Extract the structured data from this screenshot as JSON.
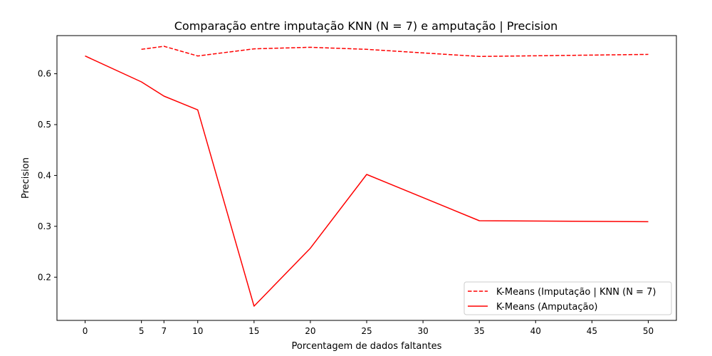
{
  "chart_data": {
    "type": "line",
    "title": "Comparação entre imputação KNN (N = 7) e amputação | Precision",
    "xlabel": "Porcentagem de dados faltantes",
    "ylabel": "Precision",
    "xlim": [
      -2.5,
      52.5
    ],
    "ylim": [
      0.115,
      0.675
    ],
    "xticks": [
      0,
      5,
      7,
      10,
      15,
      20,
      25,
      30,
      35,
      40,
      45,
      50
    ],
    "yticks": [
      0.2,
      0.3,
      0.4,
      0.5,
      0.6
    ],
    "grid": false,
    "legend_position": "bottom-right",
    "series": [
      {
        "name": "K-Means (Imputação | KNN (N = 7)",
        "style": "dashed",
        "color": "#ff0000",
        "x": [
          5,
          7,
          10,
          15,
          20,
          25,
          35,
          50
        ],
        "y": [
          0.648,
          0.654,
          0.635,
          0.649,
          0.652,
          0.648,
          0.634,
          0.638
        ]
      },
      {
        "name": "K-Means (Amputação)",
        "style": "solid",
        "color": "#ff0000",
        "x": [
          0,
          5,
          7,
          10,
          15,
          20,
          25,
          35,
          50
        ],
        "y": [
          0.635,
          0.584,
          0.556,
          0.529,
          0.143,
          0.257,
          0.402,
          0.311,
          0.309
        ]
      }
    ]
  }
}
